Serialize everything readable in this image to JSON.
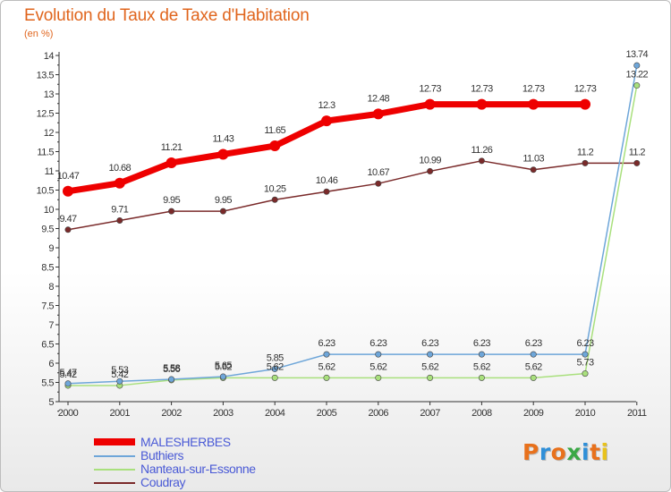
{
  "header": {
    "title": "Evolution du Taux de Taxe d'Habitation",
    "subtitle": "(en %)"
  },
  "chart_data": {
    "type": "line",
    "title": "Evolution du Taux de Taxe d'Habitation",
    "subtitle": "(en %)",
    "xlabel": "",
    "ylabel": "",
    "x": [
      "2000",
      "2001",
      "2002",
      "2003",
      "2004",
      "2005",
      "2006",
      "2007",
      "2008",
      "2009",
      "2010",
      "2011"
    ],
    "ylim": [
      5,
      14
    ],
    "yticks": [
      "5",
      "5.5",
      "6",
      "6.5",
      "7",
      "7.5",
      "8",
      "8.5",
      "9",
      "9.5",
      "10",
      "10.5",
      "11",
      "11.5",
      "12",
      "12.5",
      "13",
      "13.5",
      "14"
    ],
    "grid": false,
    "legend_position": "bottom-left",
    "series": [
      {
        "name": "MALESHERBES",
        "color": "#ee0000",
        "values": [
          10.47,
          10.68,
          11.21,
          11.43,
          11.65,
          12.3,
          12.48,
          12.73,
          12.73,
          12.73,
          12.73,
          null
        ],
        "labels": [
          "10.47",
          "10.68",
          "11.21",
          "11.43",
          "11.65",
          "12.3",
          "12.48",
          "12.73",
          "12.73",
          "12.73",
          "12.73",
          ""
        ]
      },
      {
        "name": "Buthiers",
        "color": "#6ea6d9",
        "values": [
          5.47,
          5.53,
          5.58,
          5.65,
          5.85,
          6.23,
          6.23,
          6.23,
          6.23,
          6.23,
          6.23,
          13.74
        ],
        "labels": [
          "5.47",
          "5.53",
          "5.58",
          "5.65",
          "5.85",
          "6.23",
          "6.23",
          "6.23",
          "6.23",
          "6.23",
          "6.23",
          "13.74"
        ]
      },
      {
        "name": "Nanteau-sur-Essonne",
        "color": "#a9e07d",
        "values": [
          5.42,
          5.42,
          5.56,
          5.62,
          5.62,
          5.62,
          5.62,
          5.62,
          5.62,
          5.62,
          5.73,
          13.22
        ],
        "labels": [
          "5.42",
          "5.42",
          "5.56",
          "5.62",
          "5.62",
          "5.62",
          "5.62",
          "5.62",
          "5.62",
          "5.62",
          "5.73",
          "13.22"
        ]
      },
      {
        "name": "Coudray",
        "color": "#7a2a2a",
        "values": [
          9.47,
          9.71,
          9.95,
          9.95,
          10.25,
          10.46,
          10.67,
          10.99,
          11.26,
          11.03,
          11.2,
          11.2
        ],
        "labels": [
          "9.47",
          "9.71",
          "9.95",
          "9.95",
          "10.25",
          "10.46",
          "10.67",
          "10.99",
          "11.26",
          "11.03",
          "11.2",
          "11.2"
        ]
      }
    ]
  },
  "logo": {
    "text": "Proxiti",
    "colors": [
      "#e8711c",
      "#2f8fd8",
      "#e8711c",
      "#3aa845",
      "#2f8fd8",
      "#e8711c",
      "#e8c21c"
    ]
  }
}
